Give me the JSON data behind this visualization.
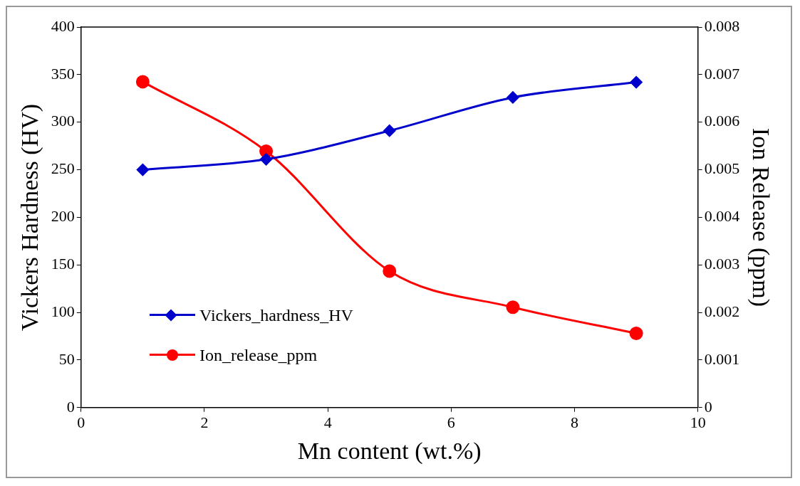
{
  "chart_data": {
    "type": "line",
    "xlabel": "Mn content (wt.%)",
    "ylabel": "Vickers Hardness (HV)",
    "y2label": "Ion Release (ppm)",
    "x": [
      1,
      3,
      5,
      7,
      9
    ],
    "series": [
      {
        "name": "Vickers_hardness_HV",
        "color": "#0000cc",
        "values": [
          250,
          261,
          291,
          326,
          342
        ],
        "marker": "diamond"
      },
      {
        "name": "Ion_release_ppm",
        "color": "#ff0000",
        "values": [
          0.00685,
          0.00539,
          0.00287,
          0.00211,
          0.00156
        ],
        "axis": "y2",
        "marker": "circle"
      }
    ],
    "xlim": [
      0,
      10
    ],
    "xticks": [
      0,
      2,
      4,
      6,
      8,
      10
    ],
    "ylim": [
      0,
      400
    ],
    "yticks": [
      0,
      50,
      100,
      150,
      200,
      250,
      300,
      350,
      400
    ],
    "y2lim": [
      0,
      0.008
    ],
    "y2ticks": [
      0,
      0.001,
      0.002,
      0.003,
      0.004,
      0.005,
      0.006,
      0.007,
      0.008
    ],
    "grid": false,
    "legend": "bottom left",
    "line_style": "solid"
  }
}
